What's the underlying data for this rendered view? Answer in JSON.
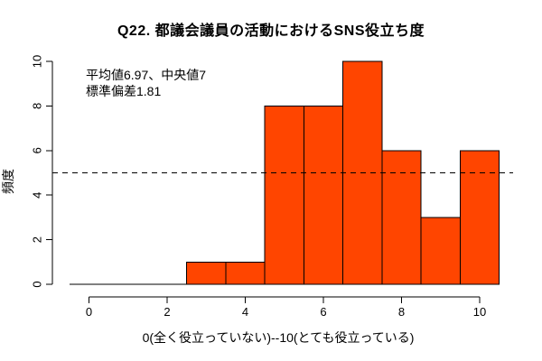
{
  "chart_data": {
    "type": "bar",
    "subtype": "histogram",
    "title": "Q22. 都議会議員の活動におけるSNS役立ち度",
    "xlabel": "0(全く役立っていない)--10(とても役立っている)",
    "ylabel": "頻度",
    "annotation": [
      "平均値6.97、中央値7",
      "標準偏差1.81"
    ],
    "stats": {
      "mean": 6.97,
      "median": 7,
      "sd": 1.81
    },
    "bins": [
      {
        "from": 2.5,
        "to": 3.5,
        "count": 1
      },
      {
        "from": 3.5,
        "to": 4.5,
        "count": 1
      },
      {
        "from": 4.5,
        "to": 5.5,
        "count": 8
      },
      {
        "from": 5.5,
        "to": 6.5,
        "count": 8
      },
      {
        "from": 6.5,
        "to": 7.5,
        "count": 10
      },
      {
        "from": 7.5,
        "to": 8.5,
        "count": 6
      },
      {
        "from": 8.5,
        "to": 9.5,
        "count": 3
      },
      {
        "from": 9.5,
        "to": 10.5,
        "count": 6
      }
    ],
    "baseline_range": [
      -0.5,
      10.5
    ],
    "x_ticks": [
      0,
      2,
      4,
      6,
      8,
      10
    ],
    "y_ticks": [
      0,
      2,
      4,
      6,
      8,
      10
    ],
    "xlim": [
      -0.5,
      10.5
    ],
    "ylim": [
      0,
      10
    ],
    "reference_line_y": 5,
    "grid": "off",
    "legend": "none",
    "bar_fill": "#FF4500",
    "bar_stroke": "#000000",
    "axis_color": "#000000",
    "background": "#FFFFFF"
  }
}
